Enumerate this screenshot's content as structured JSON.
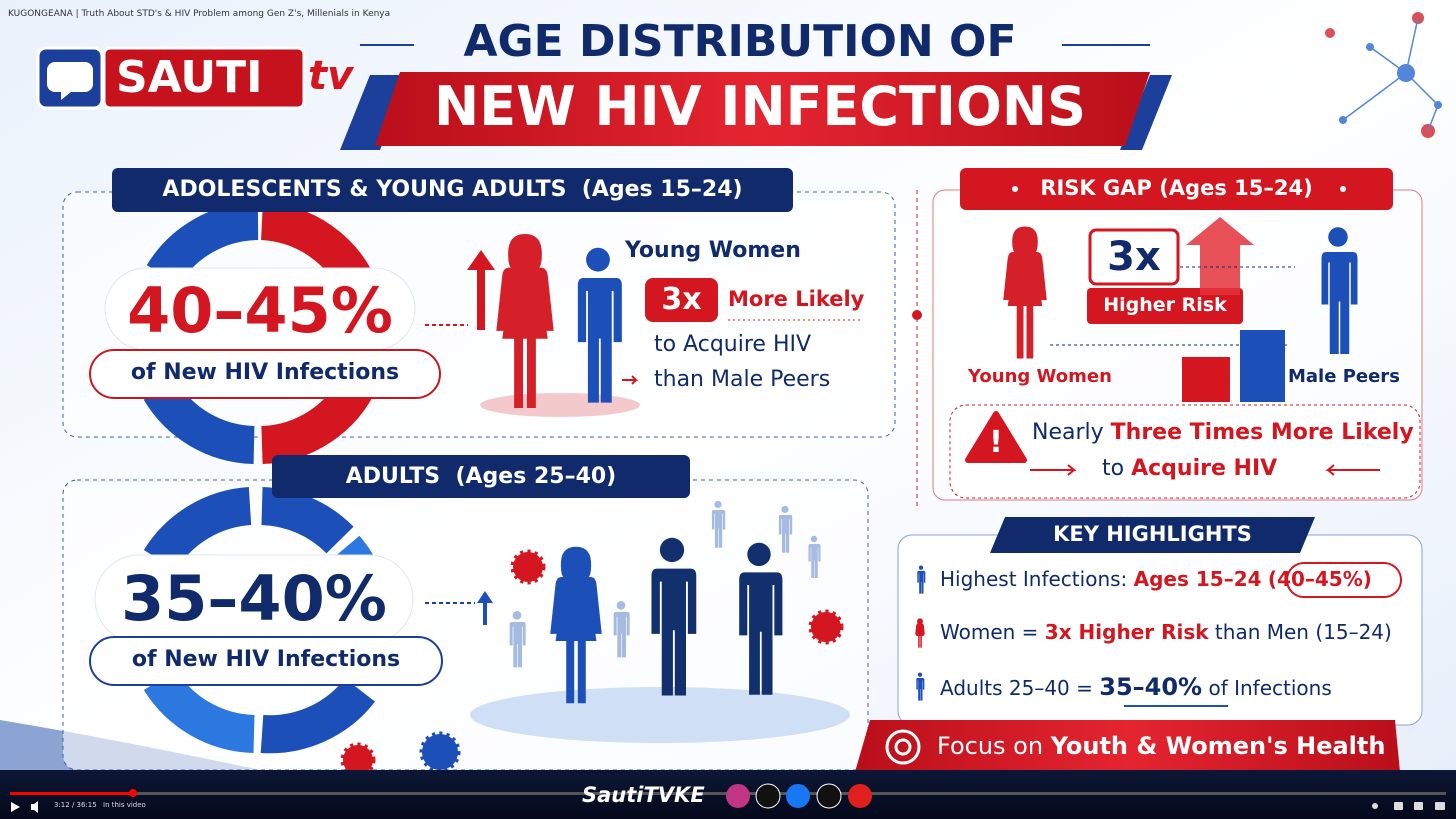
{
  "video": {
    "title": "KUGONGEANA | Truth About STD's & HIV Problem among Gen Z's, Millenials in Kenya",
    "time": "3:12 / 36:15",
    "chapters": "In this video",
    "channel": "SautiTVKE"
  },
  "logo": {
    "name": "SAUTI",
    "suffix": "tv"
  },
  "header": {
    "title_line1": "AGE DISTRIBUTION OF",
    "title_line2": "NEW HIV INFECTIONS"
  },
  "youth": {
    "heading": "ADOLESCENTS & YOUNG ADULTS  (Ages 15–24)",
    "share": "40–45%",
    "share_caption": "of New HIV Infections",
    "group": "Young Women",
    "multiplier": "3x",
    "likely": "More Likely",
    "acquire": "to Acquire HIV",
    "compare": "than Male Peers"
  },
  "risk_gap": {
    "heading": "RISK GAP (Ages 15–24)",
    "multiplier": "3x",
    "risk": "Higher Risk",
    "women": "Young Women",
    "men": "Male Peers",
    "alert": [
      "Nearly ",
      "Three Times More Likely",
      "to ",
      "Acquire HIV"
    ]
  },
  "adults": {
    "heading": "ADULTS  (Ages 25–40)",
    "share": "35–40%",
    "share_caption": "of New HIV Infections"
  },
  "key_highlights": {
    "title": "KEY HIGHLIGHTS",
    "items": [
      [
        "Highest Infections: ",
        "Ages 15–24",
        "(40–45%)"
      ],
      [
        "Women = ",
        "3x Higher Risk",
        " than Men (15–24)"
      ],
      [
        "Adults 25–40 = ",
        "35–40%",
        " of Infections"
      ]
    ]
  },
  "banner": [
    "Focus on ",
    "Youth & Women's Health"
  ]
}
